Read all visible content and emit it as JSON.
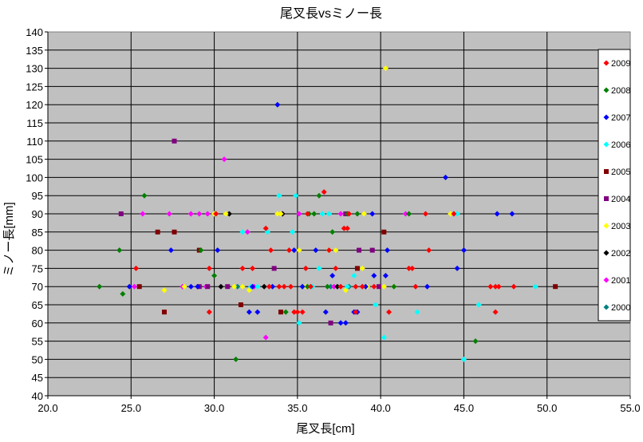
{
  "chart_data": {
    "type": "scatter",
    "title": "尾叉長vsミノー長",
    "xlabel": "尾叉長[cm]",
    "ylabel": "ミノー長[mm]",
    "xlim": [
      20,
      55
    ],
    "ylim": [
      40,
      140
    ],
    "x_ticks": [
      20,
      25,
      30,
      35,
      40,
      45,
      50,
      55
    ],
    "x_tick_labels": [
      "20.0",
      "25.0",
      "30.0",
      "35.0",
      "40.0",
      "45.0",
      "50.0",
      "55.0"
    ],
    "y_ticks": [
      40,
      45,
      50,
      55,
      60,
      65,
      70,
      75,
      80,
      85,
      90,
      95,
      100,
      105,
      110,
      115,
      120,
      125,
      130,
      135,
      140
    ],
    "y_tick_labels": [
      "40",
      "45",
      "50",
      "55",
      "60",
      "65",
      "70",
      "75",
      "80",
      "85",
      "90",
      "95",
      "100",
      "105",
      "110",
      "115",
      "120",
      "125",
      "130",
      "135",
      "140"
    ],
    "grid": true,
    "plot_background": "#c0c0c0",
    "legend_position": "right",
    "series": [
      {
        "name": "2009",
        "color": "#ff0000",
        "marker": "diamond",
        "points": [
          [
            25.3,
            75
          ],
          [
            29.7,
            75
          ],
          [
            29.7,
            63
          ],
          [
            30.1,
            90
          ],
          [
            31.7,
            75
          ],
          [
            32.3,
            75
          ],
          [
            33.1,
            86
          ],
          [
            33.4,
            80
          ],
          [
            33.3,
            70
          ],
          [
            33.9,
            70
          ],
          [
            34.2,
            70
          ],
          [
            34.5,
            80
          ],
          [
            34.6,
            70
          ],
          [
            34.8,
            63
          ],
          [
            35.0,
            63
          ],
          [
            35.3,
            63
          ],
          [
            35.5,
            75
          ],
          [
            35.8,
            70
          ],
          [
            35.6,
            90
          ],
          [
            36.6,
            96
          ],
          [
            36.9,
            80
          ],
          [
            37.3,
            75
          ],
          [
            37.6,
            70
          ],
          [
            37.8,
            86
          ],
          [
            38.0,
            86
          ],
          [
            38.1,
            90
          ],
          [
            38.5,
            70
          ],
          [
            38.5,
            63
          ],
          [
            38.9,
            70
          ],
          [
            39.6,
            70
          ],
          [
            40.5,
            63
          ],
          [
            41.7,
            75
          ],
          [
            41.9,
            75
          ],
          [
            42.1,
            70
          ],
          [
            42.7,
            90
          ],
          [
            42.9,
            80
          ],
          [
            44.4,
            90
          ],
          [
            46.6,
            70
          ],
          [
            46.9,
            70
          ],
          [
            47.1,
            70
          ],
          [
            46.9,
            63
          ],
          [
            48.0,
            70
          ]
        ]
      },
      {
        "name": "2008",
        "color": "#008000",
        "marker": "diamond",
        "points": [
          [
            23.1,
            70
          ],
          [
            24.3,
            80
          ],
          [
            24.5,
            68
          ],
          [
            25.8,
            95
          ],
          [
            29.2,
            80
          ],
          [
            30.0,
            73
          ],
          [
            31.3,
            50
          ],
          [
            34.3,
            63
          ],
          [
            35.6,
            70
          ],
          [
            35.7,
            90
          ],
          [
            36.0,
            90
          ],
          [
            36.3,
            95
          ],
          [
            36.8,
            70
          ],
          [
            37.1,
            85
          ],
          [
            38.0,
            90
          ],
          [
            38.6,
            90
          ],
          [
            40.8,
            70
          ],
          [
            41.7,
            90
          ],
          [
            45.7,
            55
          ]
        ]
      },
      {
        "name": "2007",
        "color": "#0000ff",
        "marker": "diamond",
        "points": [
          [
            24.9,
            70
          ],
          [
            27.4,
            80
          ],
          [
            28.6,
            70
          ],
          [
            29.0,
            70
          ],
          [
            30.2,
            80
          ],
          [
            32.1,
            63
          ],
          [
            32.6,
            63
          ],
          [
            32.3,
            70
          ],
          [
            33.5,
            70
          ],
          [
            33.8,
            120
          ],
          [
            34.8,
            80
          ],
          [
            35.3,
            70
          ],
          [
            36.1,
            80
          ],
          [
            36.7,
            63
          ],
          [
            37.1,
            73
          ],
          [
            37.6,
            60
          ],
          [
            37.9,
            60
          ],
          [
            38.4,
            63
          ],
          [
            38.6,
            63
          ],
          [
            39.1,
            70
          ],
          [
            39.6,
            73
          ],
          [
            39.5,
            90
          ],
          [
            40.3,
            73
          ],
          [
            40.4,
            80
          ],
          [
            42.8,
            70
          ],
          [
            43.9,
            100
          ],
          [
            44.6,
            75
          ],
          [
            45.0,
            80
          ],
          [
            47.0,
            90
          ],
          [
            47.9,
            90
          ]
        ]
      },
      {
        "name": "2006",
        "color": "#00ffff",
        "marker": "diamond",
        "points": [
          [
            31.7,
            85
          ],
          [
            32.2,
            70
          ],
          [
            32.6,
            70
          ],
          [
            33.2,
            85
          ],
          [
            33.9,
            95
          ],
          [
            34.9,
            95
          ],
          [
            34.7,
            85
          ],
          [
            35.1,
            60
          ],
          [
            35.9,
            70
          ],
          [
            36.3,
            75
          ],
          [
            36.5,
            90
          ],
          [
            36.9,
            90
          ],
          [
            38.0,
            70
          ],
          [
            38.4,
            73
          ],
          [
            39.7,
            65
          ],
          [
            40.2,
            56
          ],
          [
            42.2,
            63
          ],
          [
            44.6,
            90
          ],
          [
            45.0,
            50
          ],
          [
            45.9,
            65
          ],
          [
            49.3,
            70
          ]
        ]
      },
      {
        "name": "2005",
        "color": "#800000",
        "marker": "square",
        "points": [
          [
            25.5,
            70
          ],
          [
            26.6,
            85
          ],
          [
            27.0,
            63
          ],
          [
            27.6,
            85
          ],
          [
            29.1,
            80
          ],
          [
            31.6,
            65
          ],
          [
            34.0,
            63
          ],
          [
            38.6,
            75
          ],
          [
            40.2,
            85
          ],
          [
            50.5,
            70
          ]
        ]
      },
      {
        "name": "2004",
        "color": "#800080",
        "marker": "square",
        "points": [
          [
            24.4,
            90
          ],
          [
            27.6,
            110
          ],
          [
            29.1,
            70
          ],
          [
            29.6,
            70
          ],
          [
            30.8,
            70
          ],
          [
            33.6,
            75
          ],
          [
            37.0,
            60
          ],
          [
            37.9,
            90
          ],
          [
            38.7,
            80
          ],
          [
            39.5,
            80
          ],
          [
            39.9,
            70
          ]
        ]
      },
      {
        "name": "2003",
        "color": "#ffff00",
        "marker": "diamond",
        "points": [
          [
            27.0,
            69
          ],
          [
            28.2,
            70
          ],
          [
            30.0,
            90
          ],
          [
            30.7,
            90
          ],
          [
            31.2,
            70
          ],
          [
            31.7,
            70
          ],
          [
            32.1,
            69
          ],
          [
            33.8,
            90
          ],
          [
            34.0,
            90
          ],
          [
            35.1,
            80
          ],
          [
            35.5,
            70
          ],
          [
            36.9,
            80
          ],
          [
            37.3,
            80
          ],
          [
            37.9,
            69
          ],
          [
            38.9,
            75
          ],
          [
            39.0,
            90
          ],
          [
            39.2,
            70
          ],
          [
            40.3,
            130
          ],
          [
            40.2,
            70
          ],
          [
            40.8,
            70
          ],
          [
            44.2,
            90
          ]
        ]
      },
      {
        "name": "2002",
        "color": "#000000",
        "marker": "diamond",
        "points": [
          [
            30.4,
            70
          ],
          [
            30.9,
            90
          ],
          [
            33.0,
            70
          ],
          [
            34.1,
            90
          ],
          [
            37.4,
            70
          ]
        ]
      },
      {
        "name": "2001",
        "color": "#ff00ff",
        "marker": "diamond",
        "points": [
          [
            25.2,
            70
          ],
          [
            25.7,
            90
          ],
          [
            27.3,
            90
          ],
          [
            28.1,
            70
          ],
          [
            28.6,
            90
          ],
          [
            29.1,
            90
          ],
          [
            29.5,
            70
          ],
          [
            29.6,
            90
          ],
          [
            30.6,
            105
          ],
          [
            32.0,
            85
          ],
          [
            32.4,
            70
          ],
          [
            33.1,
            56
          ],
          [
            34.1,
            90
          ],
          [
            35.1,
            90
          ],
          [
            37.2,
            70
          ],
          [
            37.6,
            90
          ],
          [
            41.5,
            90
          ]
        ]
      },
      {
        "name": "2000",
        "color": "#008080",
        "marker": "diamond",
        "points": [
          [
            31.4,
            70
          ],
          [
            37.0,
            70
          ],
          [
            38.1,
            70
          ]
        ]
      }
    ]
  }
}
